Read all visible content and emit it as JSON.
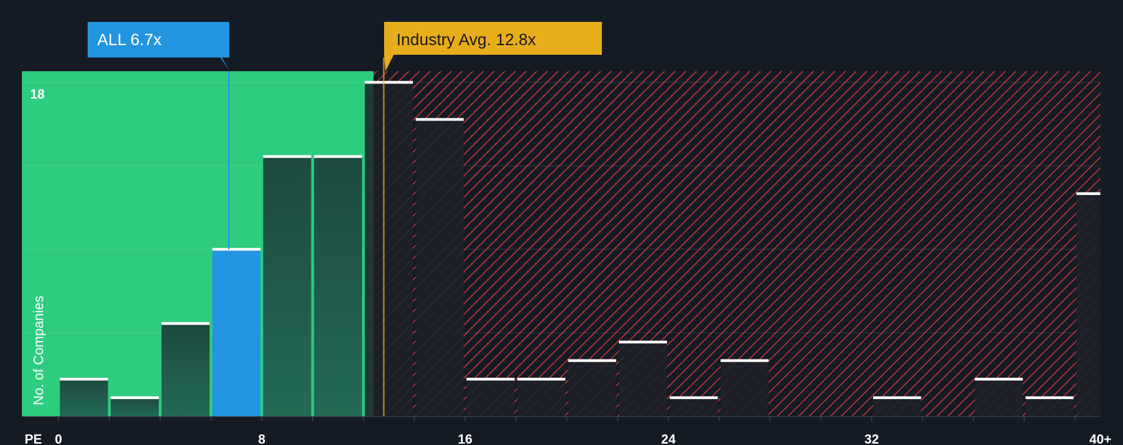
{
  "colors": {
    "background": "#151b24",
    "fair_zone": "#2ecc7f",
    "fair_bar": "#1f4d42",
    "expensive_hatch": "#e0383d",
    "expensive_bar": "#1b2029",
    "highlight_bar": "#2394e0",
    "industry_avg": "#e8ad1b",
    "cap_line": "#ffffff"
  },
  "callouts": {
    "company": "ALL 6.7x",
    "industry": "Industry Avg. 12.8x"
  },
  "chart_data": {
    "type": "bar",
    "title": "",
    "xlabel": "PE",
    "ylabel": "No. of Companies",
    "x_ticks": [
      "0",
      "8",
      "16",
      "24",
      "32",
      "40+"
    ],
    "x_tick_values": [
      0,
      8,
      16,
      24,
      32,
      41
    ],
    "y_ticks": [
      "18"
    ],
    "y_tick_values": [
      18
    ],
    "ylim": [
      0,
      18.6
    ],
    "xlim": [
      -1.44,
      41.0
    ],
    "bin_width": 2,
    "bins": [
      {
        "start": 0,
        "count": 2
      },
      {
        "start": 2,
        "count": 1
      },
      {
        "start": 4,
        "count": 5
      },
      {
        "start": 6,
        "count": 9,
        "highlight": true
      },
      {
        "start": 8,
        "count": 14
      },
      {
        "start": 10,
        "count": 14
      },
      {
        "start": 12,
        "count": 18
      },
      {
        "start": 14,
        "count": 16
      },
      {
        "start": 16,
        "count": 2
      },
      {
        "start": 18,
        "count": 2
      },
      {
        "start": 20,
        "count": 3
      },
      {
        "start": 22,
        "count": 4
      },
      {
        "start": 24,
        "count": 1
      },
      {
        "start": 26,
        "count": 3
      },
      {
        "start": 28,
        "count": 0
      },
      {
        "start": 30,
        "count": 0
      },
      {
        "start": 32,
        "count": 1
      },
      {
        "start": 34,
        "count": 0
      },
      {
        "start": 36,
        "count": 2
      },
      {
        "start": 38,
        "count": 1
      },
      {
        "start": 40,
        "count": 12
      }
    ],
    "company_value": 6.7,
    "industry_avg": 12.8,
    "fair_threshold": 12.4,
    "grid": true,
    "legend": "none"
  }
}
